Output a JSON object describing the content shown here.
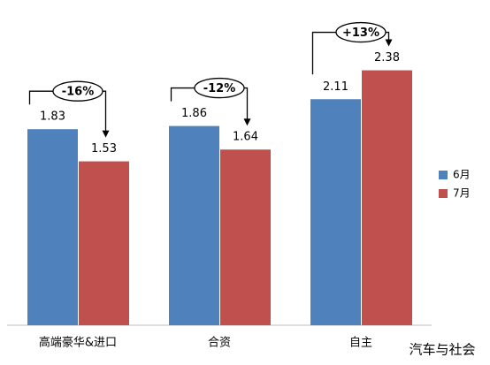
{
  "chart_data": {
    "type": "bar",
    "categories": [
      "高端豪华&进口",
      "合资",
      "自主"
    ],
    "series": [
      {
        "name": "6月",
        "color": "#4f81bd",
        "values": [
          1.83,
          1.86,
          2.11
        ]
      },
      {
        "name": "7月",
        "color": "#c0504d",
        "values": [
          1.53,
          1.64,
          2.38
        ]
      }
    ],
    "ylim": [
      0,
      2.5
    ],
    "annotations": [
      "-16%",
      "-12%",
      "+13%"
    ],
    "legend": "right",
    "watermark": "汽车与社会"
  }
}
